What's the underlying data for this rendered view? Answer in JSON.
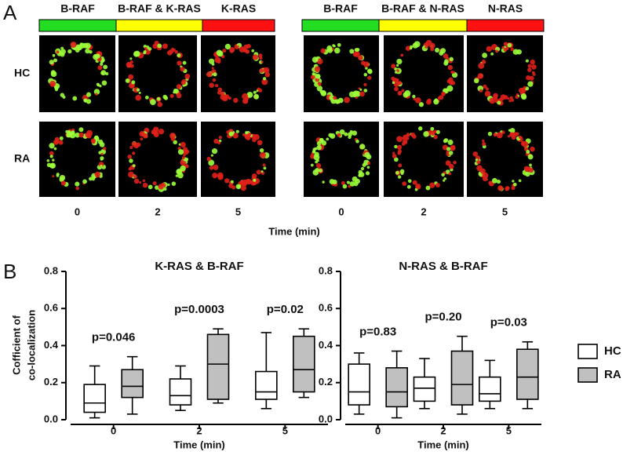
{
  "panel_a": {
    "label": "A",
    "columns": [
      "B-RAF",
      "B-RAF & K-RAS",
      "K-RAS",
      "B-RAF",
      "B-RAF & N-RAS",
      "N-RAS"
    ],
    "rows": [
      "HC",
      "RA"
    ],
    "times": [
      "0",
      "2",
      "5",
      "0",
      "2",
      "5"
    ],
    "xlabel": "Time (min)"
  },
  "panel_b_label": "B",
  "chart_data": [
    {
      "type": "box",
      "title": "K-RAS & B-RAF",
      "xlabel": "Time (min)",
      "ylabel": [
        "Cofficient of",
        "co-localization"
      ],
      "categories": [
        "0",
        "2",
        "5"
      ],
      "annotations": [
        "p=0.046",
        "p=0.0003",
        "p=0.02"
      ],
      "ylim": [
        0,
        0.8
      ],
      "yticks": [
        {
          "value": 0,
          "label": "0.0"
        },
        0.2,
        0.4,
        0.6,
        0.8
      ],
      "series": [
        {
          "name": "HC",
          "color": "#ffffff",
          "min": [
            0.01,
            0.05,
            0.06
          ],
          "q1": [
            0.04,
            0.08,
            0.11
          ],
          "median": [
            0.09,
            0.13,
            0.15
          ],
          "q3": [
            0.19,
            0.22,
            0.26
          ],
          "max": [
            0.29,
            0.29,
            0.47
          ]
        },
        {
          "name": "RA",
          "color": "#c0c0c0",
          "min": [
            0.03,
            0.09,
            0.12
          ],
          "q1": [
            0.12,
            0.11,
            0.15
          ],
          "median": [
            0.18,
            0.3,
            0.27
          ],
          "q3": [
            0.27,
            0.46,
            0.45
          ],
          "max": [
            0.34,
            0.49,
            0.49
          ]
        }
      ]
    },
    {
      "type": "box",
      "title": "N-RAS & B-RAF",
      "xlabel": "Time (min)",
      "categories": [
        "0",
        "2",
        "5"
      ],
      "annotations": [
        "p=0.83",
        "p=0.20",
        "p=0.03"
      ],
      "ylim": [
        0,
        0.8
      ],
      "yticks": [
        {
          "value": 0,
          "label": "0.0"
        },
        0.2,
        0.4,
        0.6,
        0.8
      ],
      "series": [
        {
          "name": "HC",
          "color": "#ffffff",
          "min": [
            0.03,
            0.06,
            0.06
          ],
          "q1": [
            0.08,
            0.1,
            0.1
          ],
          "median": [
            0.15,
            0.17,
            0.14
          ],
          "q3": [
            0.3,
            0.23,
            0.23
          ],
          "max": [
            0.36,
            0.33,
            0.32
          ]
        },
        {
          "name": "RA",
          "color": "#c0c0c0",
          "min": [
            0.01,
            0.03,
            0.06
          ],
          "q1": [
            0.07,
            0.08,
            0.11
          ],
          "median": [
            0.15,
            0.19,
            0.23
          ],
          "q3": [
            0.28,
            0.37,
            0.38
          ],
          "max": [
            0.37,
            0.45,
            0.42
          ]
        }
      ]
    }
  ]
}
